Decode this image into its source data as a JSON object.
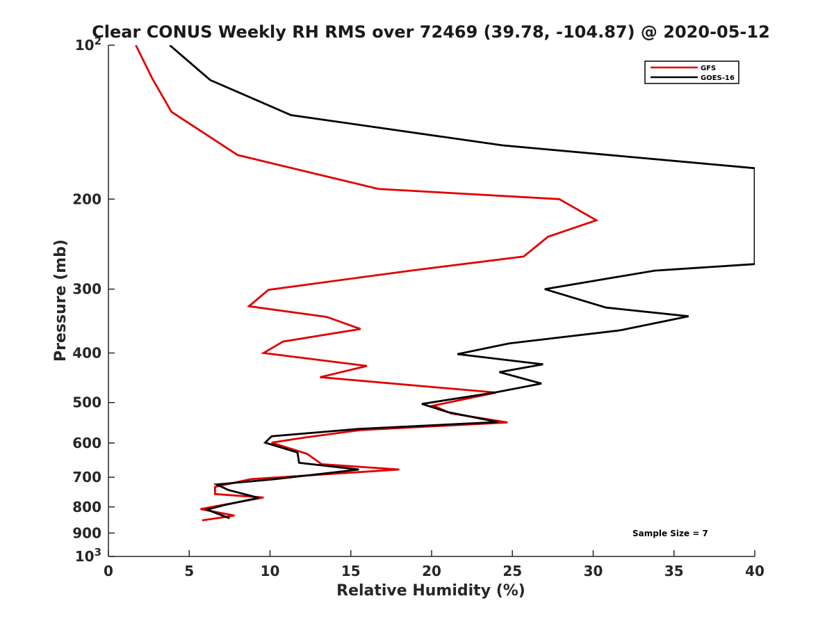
{
  "chart_data": {
    "type": "line",
    "title": "Clear CONUS Weekly RH RMS over 72469 (39.78, -104.87) @ 2020-05-12",
    "xlabel": "Relative Humidity (%)",
    "ylabel": "Pressure (mb)",
    "xlim": [
      0,
      40
    ],
    "ylim": [
      100,
      1000
    ],
    "y_scale": "log",
    "y_reversed": true,
    "x_ticks": [
      "0",
      "5",
      "10",
      "15",
      "20",
      "25",
      "30",
      "35",
      "40"
    ],
    "y_ticks": [
      {
        "value": 100,
        "base": "10",
        "exp": "2"
      },
      {
        "value": 200,
        "label": "200"
      },
      {
        "value": 300,
        "label": "300"
      },
      {
        "value": 400,
        "label": "400"
      },
      {
        "value": 500,
        "label": "500"
      },
      {
        "value": 600,
        "label": "600"
      },
      {
        "value": 700,
        "label": "700"
      },
      {
        "value": 800,
        "label": "800"
      },
      {
        "value": 900,
        "label": "900"
      },
      {
        "value": 1000,
        "base": "10",
        "exp": "3"
      }
    ],
    "grid": false,
    "legend_position": "top-right",
    "series": [
      {
        "name": "GFS",
        "color": "#e00000",
        "points": [
          [
            1.7,
            100
          ],
          [
            2.7,
            116
          ],
          [
            3.9,
            135
          ],
          [
            8.0,
            164
          ],
          [
            16.7,
            191
          ],
          [
            27.9,
            200
          ],
          [
            30.2,
            220
          ],
          [
            27.2,
            237
          ],
          [
            25.7,
            259
          ],
          [
            18.7,
            276
          ],
          [
            9.9,
            301
          ],
          [
            8.7,
            324
          ],
          [
            13.5,
            340
          ],
          [
            15.6,
            359
          ],
          [
            10.8,
            380
          ],
          [
            9.6,
            400
          ],
          [
            16.0,
            424
          ],
          [
            13.1,
            446
          ],
          [
            24.0,
            478
          ],
          [
            20.1,
            507
          ],
          [
            21.2,
            525
          ],
          [
            24.7,
            547
          ],
          [
            15.6,
            566
          ],
          [
            12.2,
            585
          ],
          [
            10.1,
            599
          ],
          [
            12.3,
            630
          ],
          [
            13.2,
            660
          ],
          [
            18.0,
            676
          ],
          [
            8.8,
            706
          ],
          [
            6.6,
            731
          ],
          [
            6.6,
            755
          ],
          [
            9.6,
            767
          ],
          [
            5.7,
            808
          ],
          [
            7.8,
            832
          ],
          [
            5.8,
            850
          ]
        ]
      },
      {
        "name": "GOES-16",
        "color": "#000000",
        "points": [
          [
            3.8,
            100
          ],
          [
            6.3,
            117
          ],
          [
            11.3,
            137
          ],
          [
            24.4,
            157
          ],
          [
            40.0,
            174
          ],
          [
            40.0,
            268
          ],
          [
            33.8,
            276
          ],
          [
            27.0,
            300
          ],
          [
            30.8,
            326
          ],
          [
            35.9,
            339
          ],
          [
            31.7,
            361
          ],
          [
            24.8,
            383
          ],
          [
            21.6,
            402
          ],
          [
            26.9,
            421
          ],
          [
            24.2,
            436
          ],
          [
            26.8,
            459
          ],
          [
            23.9,
            478
          ],
          [
            19.4,
            503
          ],
          [
            21.0,
            522
          ],
          [
            24.1,
            546
          ],
          [
            15.5,
            563
          ],
          [
            10.1,
            582
          ],
          [
            9.7,
            599
          ],
          [
            11.7,
            626
          ],
          [
            11.8,
            656
          ],
          [
            15.5,
            676
          ],
          [
            10.3,
            706
          ],
          [
            6.7,
            723
          ],
          [
            7.4,
            741
          ],
          [
            9.3,
            768
          ],
          [
            7.2,
            793
          ],
          [
            6.1,
            810
          ],
          [
            7.5,
            842
          ]
        ]
      }
    ],
    "annotations": [
      "Sample Size = 7"
    ]
  }
}
